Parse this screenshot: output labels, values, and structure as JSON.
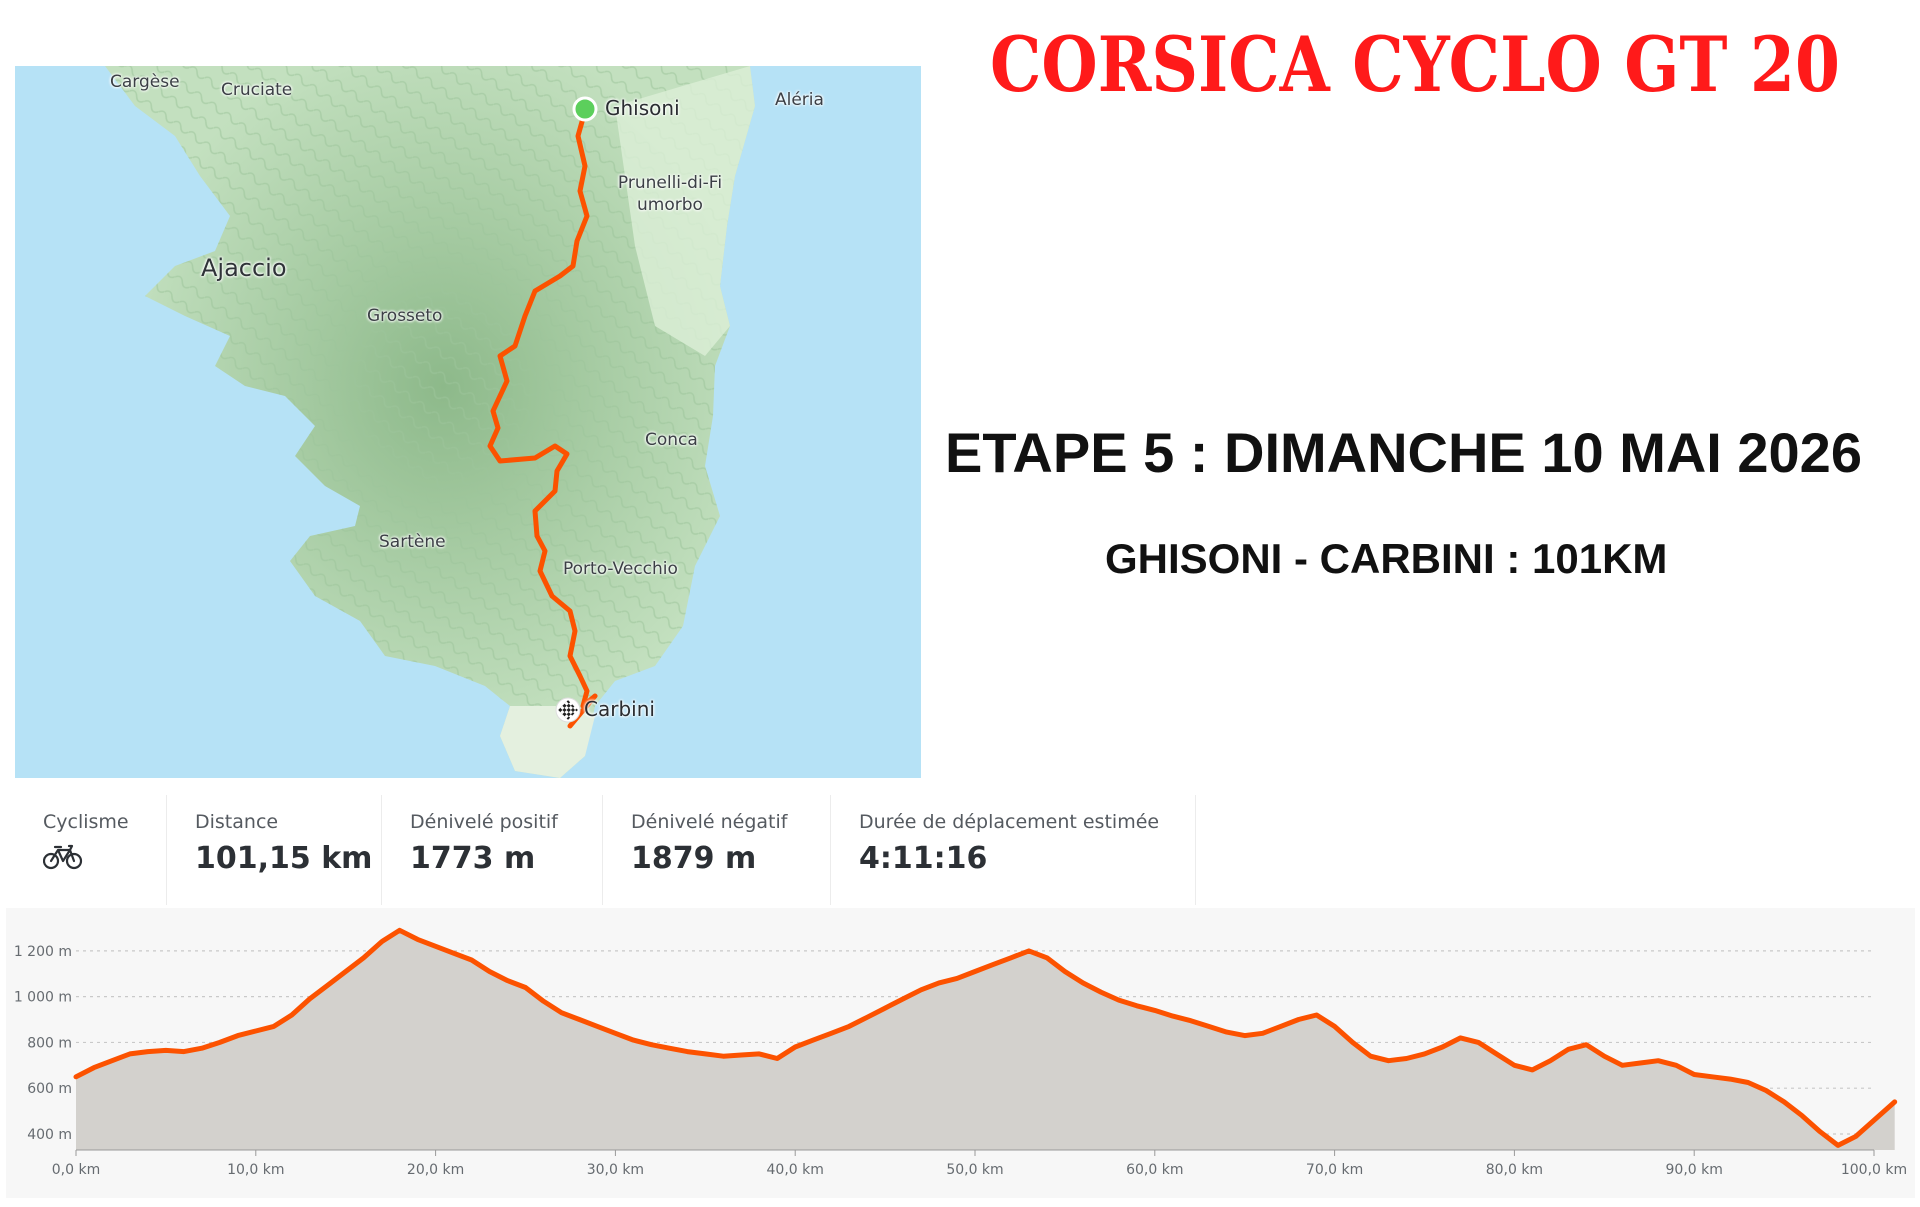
{
  "header": {
    "title": "CORSICA CYCLO GT 20",
    "stage_title": "ETAPE 5 : DIMANCHE 10 MAI 2026",
    "stage_subtitle": "GHISONI - CARBINI : 101KM",
    "title_color": "#ff1a1a"
  },
  "map": {
    "places": [
      "Cargèse",
      "Cruciate",
      "Aléria",
      "Prunelli-di-Fiumorbo",
      "Ajaccio",
      "Grosseto",
      "Conca",
      "Sartène",
      "Porto-Vecchio"
    ],
    "start_label": "Ghisoni",
    "end_label": "Carbini",
    "start_icon": "green-start-marker-icon",
    "end_icon": "checkered-flag-icon",
    "colors": {
      "sea": "#b6e2f6",
      "land": "#c7e4c4",
      "route": "#fc5200",
      "start": "#5ccf5c"
    }
  },
  "stats": [
    {
      "label": "Cyclisme",
      "value": "",
      "icon": "bicycle-icon"
    },
    {
      "label": "Distance",
      "value": "101,15 km"
    },
    {
      "label": "Dénivelé positif",
      "value": "1773 m"
    },
    {
      "label": "Dénivelé négatif",
      "value": "1879 m"
    },
    {
      "label": "Durée de déplacement estimée",
      "value": "4:11:16"
    }
  ],
  "chart_data": {
    "type": "area",
    "x_unit": "km",
    "y_unit": "m",
    "xlim": [
      0,
      100
    ],
    "ylim": [
      330,
      1300
    ],
    "x_ticks": [
      "0,0 km",
      "10,0 km",
      "20,0 km",
      "30,0 km",
      "40,0 km",
      "50,0 km",
      "60,0 km",
      "70,0 km",
      "80,0 km",
      "90,0 km",
      "100,0 km"
    ],
    "y_ticks": [
      "1 200 m",
      "1 000 m",
      "800 m",
      "600 m",
      "400 m"
    ],
    "line_color": "#fc5200",
    "fill_color": "#d3d1cd",
    "grid": true,
    "series": [
      {
        "x": [
          0,
          1,
          2,
          3,
          4,
          5,
          6,
          7,
          8,
          9,
          10,
          11,
          12,
          13,
          14,
          15,
          16,
          17,
          18,
          19,
          20,
          21,
          22,
          23,
          24,
          25,
          26,
          27,
          28,
          29,
          30,
          31,
          32,
          33,
          34,
          35,
          36,
          37,
          38,
          39,
          40,
          41,
          42,
          43,
          44,
          45,
          46,
          47,
          48,
          49,
          50,
          51,
          52,
          53,
          54,
          55,
          56,
          57,
          58,
          59,
          60,
          61,
          62,
          63,
          64,
          65,
          66,
          67,
          68,
          69,
          70,
          71,
          72,
          73,
          74,
          75,
          76,
          77,
          78,
          79,
          80,
          81,
          82,
          83,
          84,
          85,
          86,
          87,
          88,
          89,
          90,
          91,
          92,
          93,
          94,
          95,
          96,
          97,
          98,
          99,
          100,
          101.15
        ],
        "y": [
          650,
          690,
          720,
          750,
          760,
          765,
          760,
          775,
          800,
          830,
          850,
          870,
          920,
          990,
          1050,
          1110,
          1170,
          1240,
          1290,
          1250,
          1220,
          1190,
          1160,
          1110,
          1070,
          1040,
          980,
          930,
          900,
          870,
          840,
          810,
          790,
          775,
          760,
          750,
          740,
          745,
          750,
          730,
          780,
          810,
          840,
          870,
          910,
          950,
          990,
          1030,
          1060,
          1080,
          1110,
          1140,
          1170,
          1200,
          1170,
          1110,
          1060,
          1020,
          985,
          960,
          940,
          915,
          895,
          870,
          845,
          830,
          840,
          870,
          900,
          920,
          870,
          800,
          740,
          720,
          730,
          750,
          780,
          820,
          800,
          750,
          700,
          680,
          720,
          770,
          790,
          740,
          700,
          710,
          720,
          700,
          660,
          650,
          640,
          625,
          590,
          540,
          480,
          410,
          350,
          390,
          460,
          540
        ]
      }
    ]
  }
}
